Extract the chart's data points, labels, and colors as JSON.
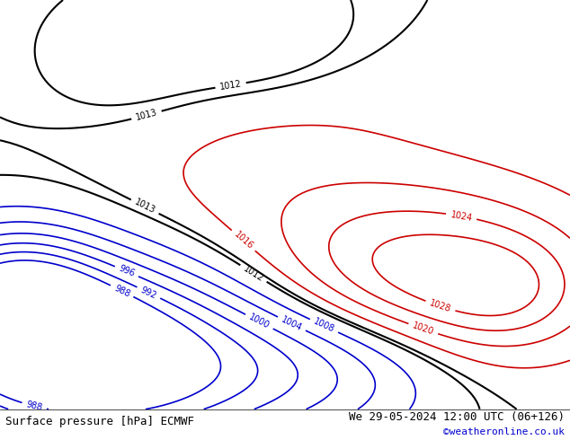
{
  "title_left": "Surface pressure [hPa] ECMWF",
  "title_right": "We 29-05-2024 12:00 UTC (06+126)",
  "title_right2": "©weatheronline.co.uk",
  "bg_color": "#d8d8d8",
  "land_color": "#c8f0a0",
  "ocean_color": "#d0d8e8",
  "fig_width": 6.34,
  "fig_height": 4.9,
  "dpi": 100,
  "extent": [
    90,
    185,
    -60,
    10
  ],
  "isobar_interval": 4,
  "isobar_low": 988,
  "isobar_high": 1032,
  "contour_black_values": [
    1012,
    1013
  ],
  "contour_red_values": [
    1016,
    1020,
    1024,
    1028
  ],
  "contour_blue_values": [
    988,
    992,
    996,
    1000,
    1004,
    1008
  ],
  "black_color": "#000000",
  "red_color": "#cc0000",
  "blue_color": "#0000cc"
}
